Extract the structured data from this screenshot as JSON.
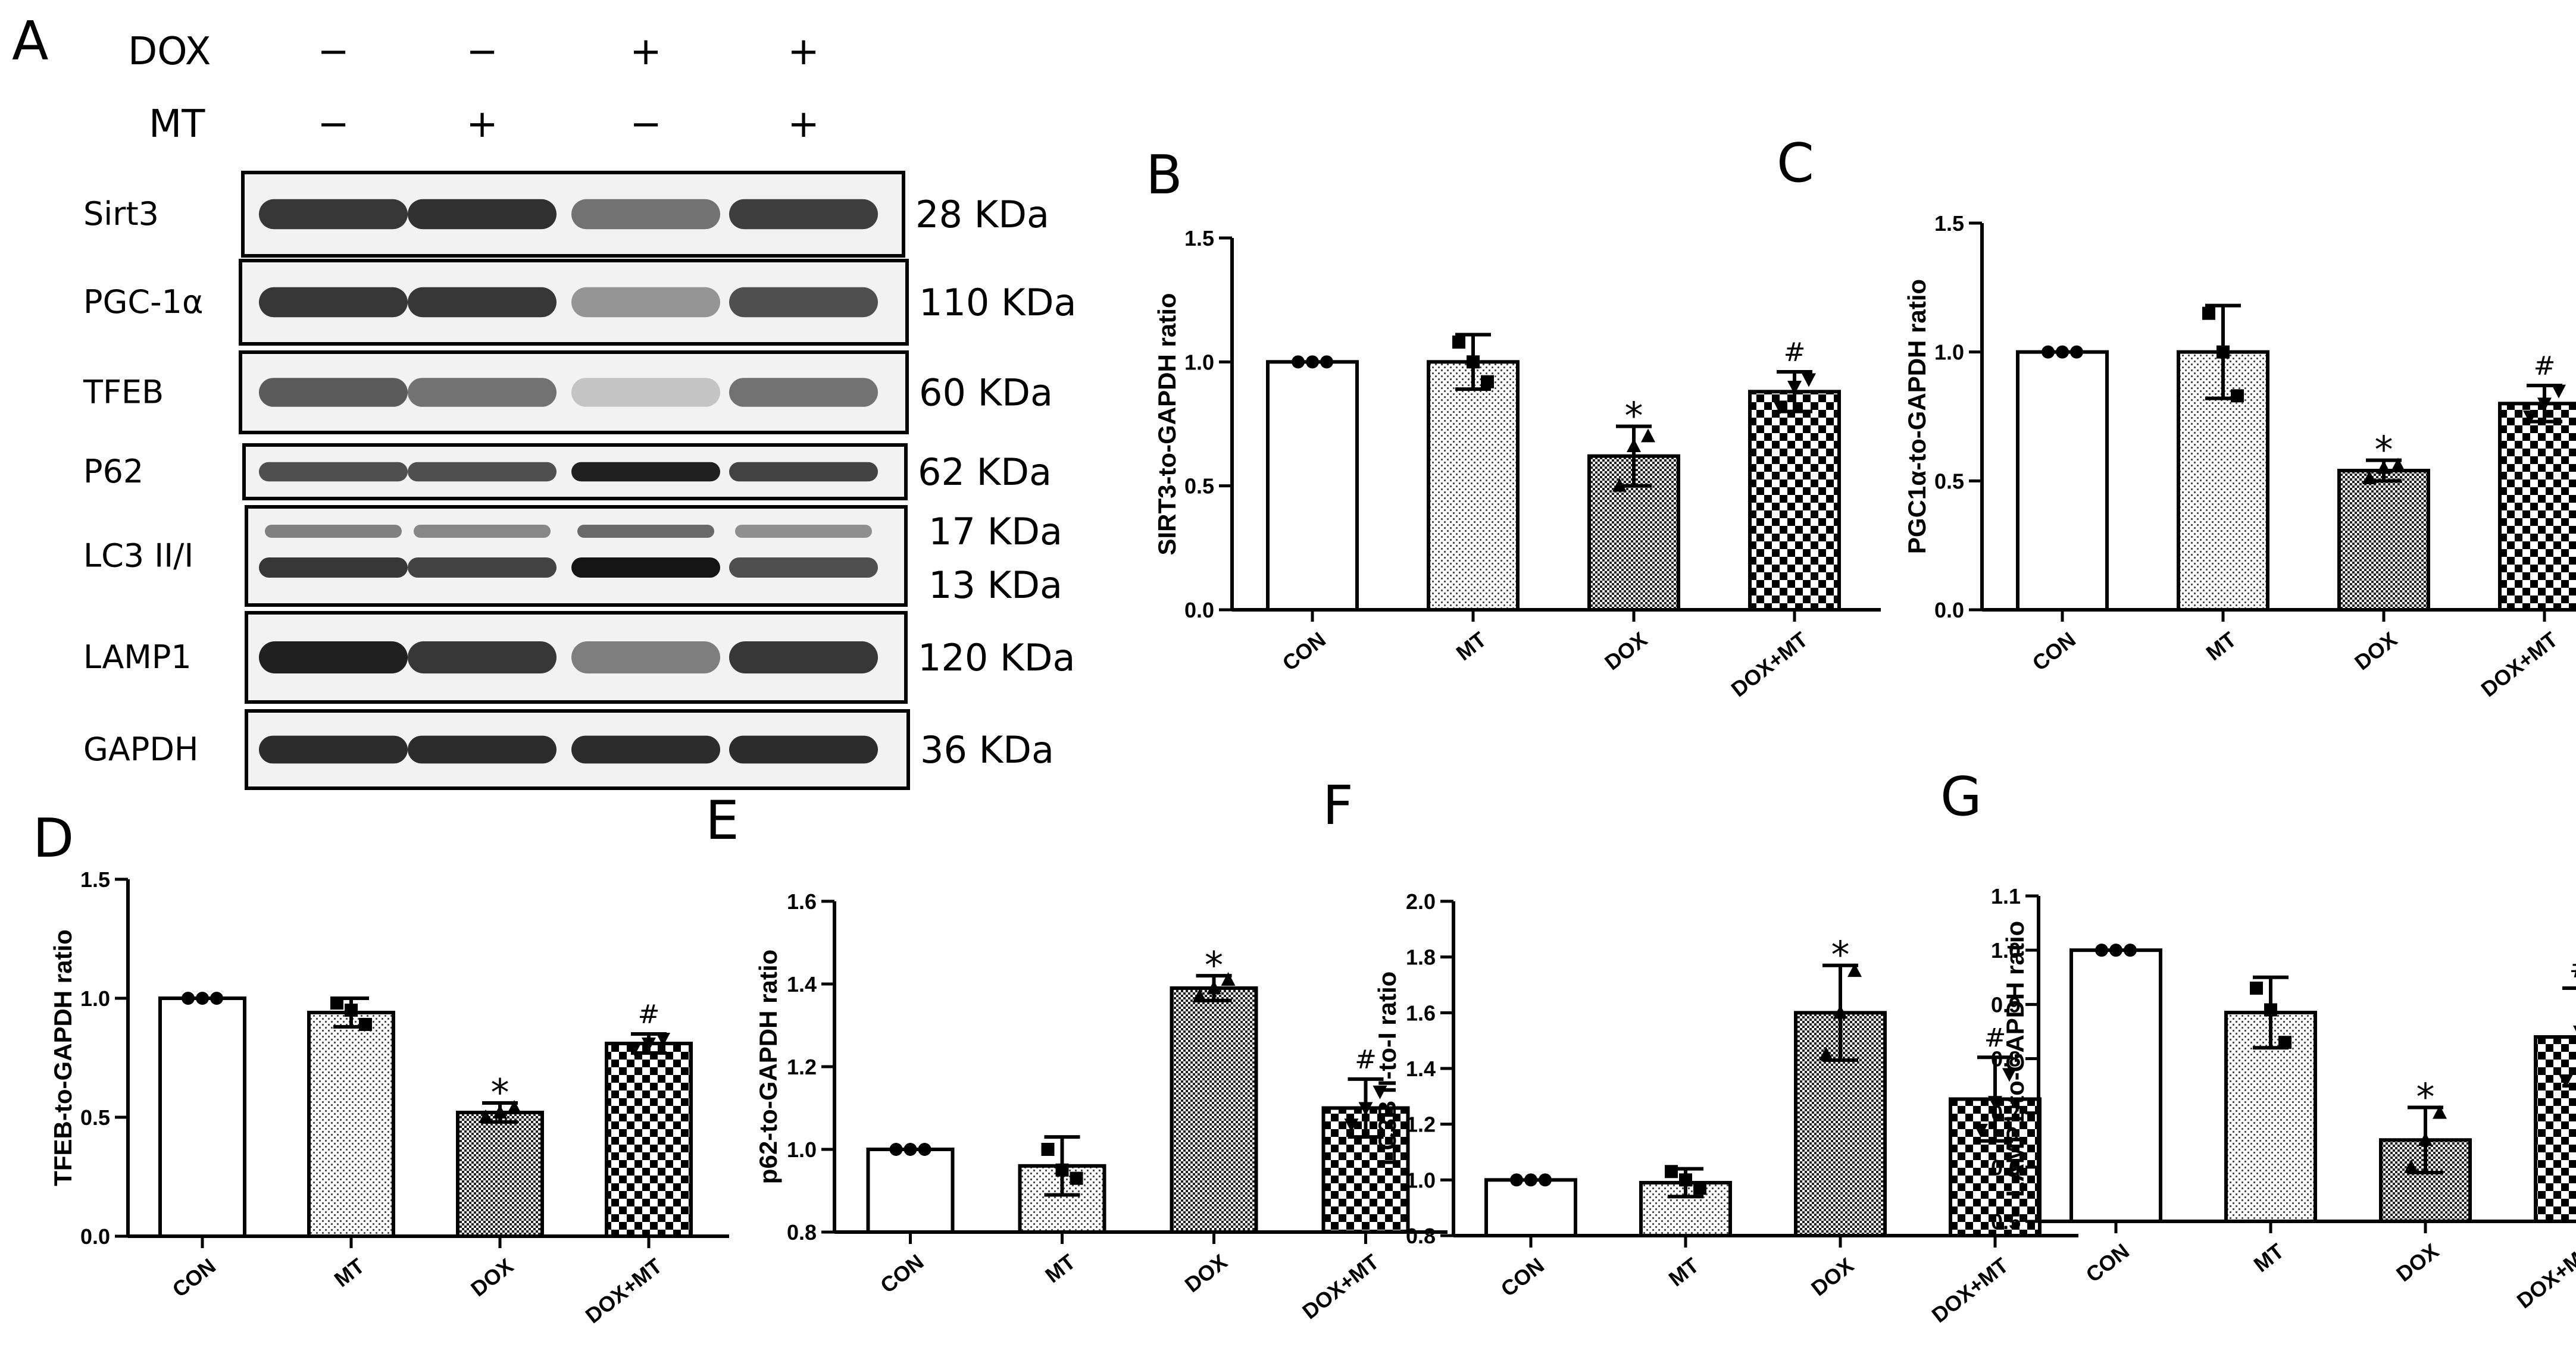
{
  "western_blot": {
    "panel_letter": "A",
    "treatments": [
      {
        "name": "DOX",
        "signs": [
          "−",
          "−",
          "+",
          "+"
        ]
      },
      {
        "name": "MT",
        "signs": [
          "−",
          "+",
          "−",
          "+"
        ]
      }
    ],
    "blots": [
      {
        "label": "Sirt3",
        "weights": [
          "28 KDa"
        ],
        "band_intensity": [
          0.85,
          0.88,
          0.6,
          0.82
        ]
      },
      {
        "label": "PGC-1α",
        "weights": [
          "110 KDa"
        ],
        "band_intensity": [
          0.85,
          0.85,
          0.45,
          0.75
        ]
      },
      {
        "label": "TFEB",
        "weights": [
          "60 KDa"
        ],
        "band_intensity": [
          0.7,
          0.6,
          0.25,
          0.6
        ]
      },
      {
        "label": "P62",
        "weights": [
          "62 KDa"
        ],
        "band_intensity": [
          0.75,
          0.75,
          0.95,
          0.8
        ]
      },
      {
        "label": "LC3 II/I",
        "weights": [
          "17 KDa",
          "13 KDa"
        ],
        "band_intensity": [
          0.85,
          0.8,
          1.0,
          0.75
        ]
      },
      {
        "label": "LAMP1",
        "weights": [
          "120 KDa"
        ],
        "band_intensity": [
          0.95,
          0.85,
          0.55,
          0.85
        ]
      },
      {
        "label": "GAPDH",
        "weights": [
          "36 KDa"
        ],
        "band_intensity": [
          0.9,
          0.9,
          0.9,
          0.9
        ]
      }
    ]
  },
  "chart_data": [
    {
      "panel": "B",
      "type": "bar",
      "categories": [
        "CON",
        "MT",
        "DOX",
        "DOX+MT"
      ],
      "values": [
        1.0,
        1.0,
        0.62,
        0.88
      ],
      "errors": [
        0.0,
        0.11,
        0.12,
        0.08
      ],
      "points": [
        [
          1.0,
          1.0,
          1.0
        ],
        [
          1.08,
          1.0,
          0.92
        ],
        [
          0.5,
          0.66,
          0.7
        ],
        [
          0.82,
          0.9,
          0.93
        ]
      ],
      "markers": [
        "circle",
        "square",
        "triangle",
        "triangle-down"
      ],
      "ylabel": "SIRT3-to-GAPDH ratio",
      "ylim": [
        0,
        1.5
      ],
      "ticks": [
        0.0,
        0.5,
        1.0,
        1.5
      ],
      "annotations": [
        "",
        "",
        "*",
        "#"
      ]
    },
    {
      "panel": "C",
      "type": "bar",
      "categories": [
        "CON",
        "MT",
        "DOX",
        "DOX+MT"
      ],
      "values": [
        1.0,
        1.0,
        0.54,
        0.8
      ],
      "errors": [
        0.0,
        0.18,
        0.04,
        0.07
      ],
      "points": [
        [
          1.0,
          1.0,
          1.0
        ],
        [
          1.15,
          1.0,
          0.83
        ],
        [
          0.51,
          0.55,
          0.56
        ],
        [
          0.75,
          0.8,
          0.85
        ]
      ],
      "markers": [
        "circle",
        "square",
        "triangle",
        "triangle-down"
      ],
      "ylabel": "PGC1α-to-GAPDH ratio",
      "ylim": [
        0,
        1.5
      ],
      "ticks": [
        0.0,
        0.5,
        1.0,
        1.5
      ],
      "annotations": [
        "",
        "",
        "*",
        "#"
      ]
    },
    {
      "panel": "D",
      "type": "bar",
      "categories": [
        "CON",
        "MT",
        "DOX",
        "DOX+MT"
      ],
      "values": [
        1.0,
        0.94,
        0.52,
        0.81
      ],
      "errors": [
        0.0,
        0.06,
        0.04,
        0.04
      ],
      "points": [
        [
          1.0,
          1.0,
          1.0
        ],
        [
          0.98,
          0.95,
          0.89
        ],
        [
          0.5,
          0.52,
          0.54
        ],
        [
          0.79,
          0.81,
          0.83
        ]
      ],
      "markers": [
        "circle",
        "square",
        "triangle",
        "triangle-down"
      ],
      "ylabel": "TFEB-to-GAPDH ratio",
      "ylim": [
        0,
        1.5
      ],
      "ticks": [
        0.0,
        0.5,
        1.0,
        1.5
      ],
      "annotations": [
        "",
        "",
        "*",
        "#"
      ]
    },
    {
      "panel": "E",
      "type": "bar",
      "categories": [
        "CON",
        "MT",
        "DOX",
        "DOX+MT"
      ],
      "values": [
        1.0,
        0.96,
        1.39,
        1.1
      ],
      "errors": [
        0.0,
        0.07,
        0.03,
        0.07
      ],
      "points": [
        [
          1.0,
          1.0,
          1.0
        ],
        [
          1.0,
          0.95,
          0.93
        ],
        [
          1.37,
          1.39,
          1.41
        ],
        [
          1.06,
          1.1,
          1.14
        ]
      ],
      "markers": [
        "circle",
        "square",
        "triangle",
        "triangle-down"
      ],
      "ylabel": "p62-to-GAPDH ratio",
      "ylim": [
        0.8,
        1.6
      ],
      "ticks": [
        0.8,
        1.0,
        1.2,
        1.4,
        1.6
      ],
      "annotations": [
        "",
        "",
        "*",
        "#"
      ]
    },
    {
      "panel": "F",
      "type": "bar",
      "categories": [
        "CON",
        "MT",
        "DOX",
        "DOX+MT"
      ],
      "values": [
        1.0,
        0.99,
        1.6,
        1.29
      ],
      "errors": [
        0.0,
        0.05,
        0.17,
        0.15
      ],
      "points": [
        [
          1.0,
          1.0,
          1.0
        ],
        [
          1.03,
          1.0,
          0.97
        ],
        [
          1.45,
          1.6,
          1.75
        ],
        [
          1.18,
          1.28,
          1.38
        ]
      ],
      "markers": [
        "circle",
        "square",
        "triangle",
        "triangle-down"
      ],
      "ylabel": "LC3B II-to-I ratio",
      "ylim": [
        0.8,
        2.0
      ],
      "ticks": [
        0.8,
        1.0,
        1.2,
        1.4,
        1.6,
        1.8,
        2.0
      ],
      "annotations": [
        "",
        "",
        "*",
        "#"
      ]
    },
    {
      "panel": "G",
      "type": "bar",
      "categories": [
        "CON",
        "MT",
        "DOX",
        "DOX+MT"
      ],
      "values": [
        1.0,
        0.885,
        0.65,
        0.84
      ],
      "errors": [
        0.0,
        0.065,
        0.06,
        0.09
      ],
      "points": [
        [
          1.0,
          1.0,
          1.0
        ],
        [
          0.93,
          0.89,
          0.83
        ],
        [
          0.6,
          0.65,
          0.7
        ],
        [
          0.76,
          0.85,
          0.92
        ]
      ],
      "markers": [
        "circle",
        "square",
        "triangle",
        "triangle-down"
      ],
      "ylabel": "LAMP1-to-GAPDH ratio",
      "ylim": [
        0.5,
        1.1
      ],
      "ticks": [
        0.5,
        0.6,
        0.7,
        0.8,
        0.9,
        1.0,
        1.1
      ],
      "annotations": [
        "",
        "",
        "*",
        "#"
      ]
    }
  ]
}
